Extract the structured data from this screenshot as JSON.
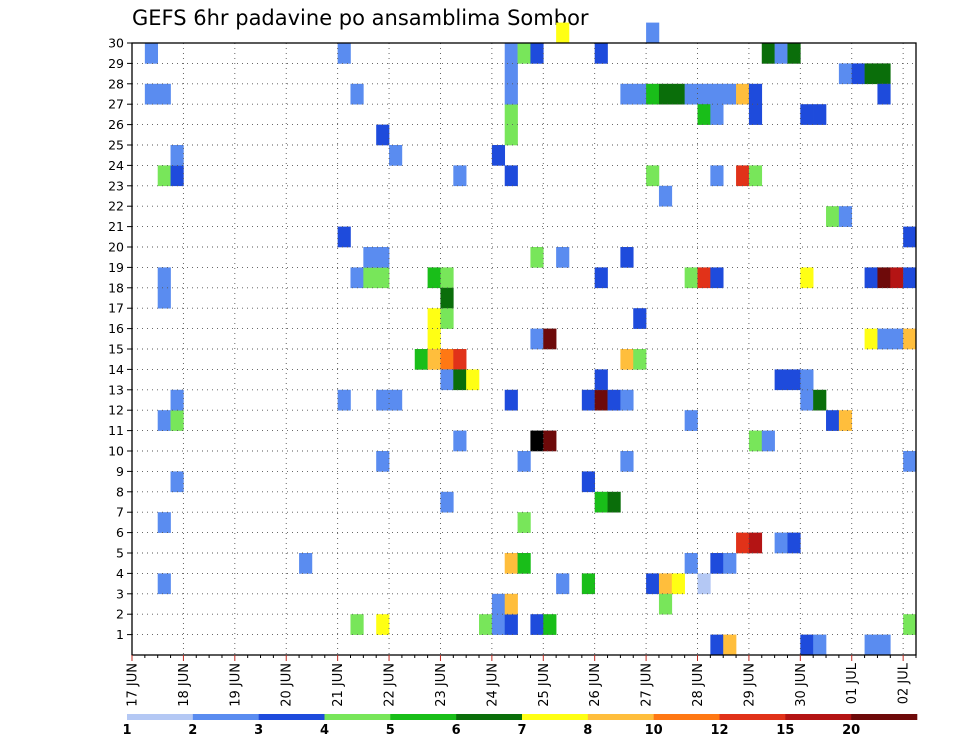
{
  "chart_data": {
    "type": "heatmap",
    "title": "GEFS 6hr padavine po ansamblima Sombor",
    "xlabel": "",
    "ylabel": "",
    "x_tick_labels": [
      "17 JUN",
      "18 JUN",
      "19 JUN",
      "20 JUN",
      "21 JUN",
      "22 JUN",
      "23 JUN",
      "24 JUN",
      "25 JUN",
      "26 JUN",
      "27 JUN",
      "28 JUN",
      "29 JUN",
      "30 JUN",
      "01 JUL",
      "02 JUL"
    ],
    "y_tick_labels": [
      "1",
      "2",
      "3",
      "4",
      "5",
      "6",
      "7",
      "8",
      "9",
      "10",
      "11",
      "12",
      "13",
      "14",
      "15",
      "16",
      "17",
      "18",
      "19",
      "20",
      "21",
      "22",
      "23",
      "24",
      "25",
      "26",
      "27",
      "28",
      "29",
      "30"
    ],
    "x_range": [
      0,
      61
    ],
    "y_range": [
      0,
      30
    ],
    "x_unit": "6-hour step from 17 JUN 00Z",
    "y_unit": "ensemble member",
    "grid": true,
    "legend_position": "bottom",
    "colorbar": {
      "labels": [
        "1",
        "2",
        "3",
        "4",
        "5",
        "6",
        "7",
        "8",
        "10",
        "12",
        "15",
        "20"
      ],
      "colors": [
        "#b4c8f4",
        "#5a8cf0",
        "#1e4bdc",
        "#78e65a",
        "#19be19",
        "#0a6e0a",
        "#ffff14",
        "#ffbe3c",
        "#ff7814",
        "#e13219",
        "#b41414",
        "#6e0a0a"
      ]
    },
    "cells": [
      [
        1,
        29,
        1
      ],
      [
        1,
        27,
        1
      ],
      [
        2,
        27,
        1
      ],
      [
        2,
        23,
        3
      ],
      [
        3,
        23,
        2
      ],
      [
        3,
        24,
        1
      ],
      [
        2,
        18,
        1
      ],
      [
        2,
        17,
        1
      ],
      [
        2,
        11,
        1
      ],
      [
        3,
        11,
        3
      ],
      [
        3,
        12,
        1
      ],
      [
        3,
        8,
        1
      ],
      [
        2,
        6,
        1
      ],
      [
        2,
        3,
        1
      ],
      [
        16,
        29,
        1
      ],
      [
        16,
        20,
        2
      ],
      [
        16,
        12,
        1
      ],
      [
        17,
        18,
        1
      ],
      [
        18,
        18,
        3
      ],
      [
        19,
        18,
        3
      ],
      [
        18,
        19,
        1
      ],
      [
        19,
        19,
        1
      ],
      [
        17,
        27,
        1
      ],
      [
        19,
        25,
        2
      ],
      [
        20,
        24,
        1
      ],
      [
        19,
        12,
        1
      ],
      [
        20,
        12,
        1
      ],
      [
        19,
        9,
        1
      ],
      [
        13,
        4,
        1
      ],
      [
        17,
        1,
        3
      ],
      [
        19,
        1,
        6
      ],
      [
        23,
        18,
        4
      ],
      [
        24,
        18,
        3
      ],
      [
        24,
        17,
        5
      ],
      [
        23,
        16,
        6
      ],
      [
        24,
        16,
        3
      ],
      [
        23,
        15,
        6
      ],
      [
        22,
        14,
        4
      ],
      [
        23,
        14,
        7
      ],
      [
        24,
        14,
        8
      ],
      [
        25,
        14,
        9
      ],
      [
        24,
        13,
        1
      ],
      [
        25,
        13,
        5
      ],
      [
        26,
        13,
        6
      ],
      [
        24,
        7,
        1
      ],
      [
        25,
        10,
        1
      ],
      [
        27,
        1,
        3
      ],
      [
        28,
        1,
        1
      ],
      [
        29,
        1,
        2
      ],
      [
        28,
        2,
        1
      ],
      [
        29,
        2,
        7
      ],
      [
        28,
        24,
        2
      ],
      [
        29,
        25,
        3
      ],
      [
        29,
        26,
        3
      ],
      [
        29,
        27,
        1
      ],
      [
        29,
        28,
        1
      ],
      [
        29,
        29,
        1
      ],
      [
        30,
        29,
        3
      ],
      [
        31,
        29,
        2
      ],
      [
        29,
        23,
        2
      ],
      [
        25,
        23,
        1
      ],
      [
        29,
        12,
        2
      ],
      [
        30,
        9,
        1
      ],
      [
        29,
        4,
        7
      ],
      [
        30,
        4,
        4
      ],
      [
        30,
        6,
        3
      ],
      [
        31,
        1,
        2
      ],
      [
        32,
        1,
        4
      ],
      [
        31,
        19,
        3
      ],
      [
        31,
        15,
        1
      ],
      [
        32,
        15,
        11
      ],
      [
        31,
        10,
        12
      ],
      [
        32,
        10,
        11
      ],
      [
        33,
        19,
        1
      ],
      [
        33,
        3,
        1
      ],
      [
        35,
        12,
        2
      ],
      [
        36,
        12,
        11
      ],
      [
        37,
        12,
        2
      ],
      [
        38,
        12,
        1
      ],
      [
        36,
        13,
        2
      ],
      [
        35,
        8,
        2
      ],
      [
        36,
        7,
        4
      ],
      [
        37,
        7,
        5
      ],
      [
        36,
        18,
        2
      ],
      [
        38,
        19,
        2
      ],
      [
        38,
        14,
        7
      ],
      [
        39,
        14,
        3
      ],
      [
        39,
        16,
        2
      ],
      [
        38,
        9,
        1
      ],
      [
        36,
        29,
        2
      ],
      [
        35,
        3,
        4
      ],
      [
        38,
        27,
        1
      ],
      [
        39,
        27,
        1
      ],
      [
        40,
        27,
        4
      ],
      [
        41,
        27,
        5
      ],
      [
        42,
        27,
        5
      ],
      [
        40,
        23,
        3
      ],
      [
        41,
        22,
        1
      ],
      [
        40,
        30,
        1
      ],
      [
        33,
        30,
        6
      ],
      [
        40,
        3,
        2
      ],
      [
        41,
        3,
        7
      ],
      [
        42,
        3,
        6
      ],
      [
        41,
        2,
        3
      ],
      [
        43,
        27,
        1
      ],
      [
        44,
        27,
        1
      ],
      [
        45,
        27,
        1
      ],
      [
        46,
        27,
        1
      ],
      [
        47,
        27,
        7
      ],
      [
        48,
        27,
        2
      ],
      [
        44,
        26,
        4
      ],
      [
        45,
        26,
        1
      ],
      [
        48,
        26,
        2
      ],
      [
        45,
        23,
        1
      ],
      [
        47,
        23,
        9
      ],
      [
        48,
        23,
        3
      ],
      [
        43,
        18,
        3
      ],
      [
        44,
        18,
        9
      ],
      [
        45,
        18,
        2
      ],
      [
        43,
        11,
        1
      ],
      [
        48,
        10,
        3
      ],
      [
        49,
        10,
        1
      ],
      [
        43,
        4,
        1
      ],
      [
        45,
        4,
        2
      ],
      [
        46,
        4,
        1
      ],
      [
        44,
        3,
        0
      ],
      [
        47,
        5,
        9
      ],
      [
        48,
        5,
        10
      ],
      [
        50,
        5,
        1
      ],
      [
        51,
        5,
        2
      ],
      [
        45,
        0,
        2
      ],
      [
        46,
        0,
        7
      ],
      [
        49,
        29,
        5
      ],
      [
        50,
        29,
        1
      ],
      [
        51,
        29,
        5
      ],
      [
        52,
        26,
        2
      ],
      [
        53,
        26,
        2
      ],
      [
        50,
        13,
        2
      ],
      [
        51,
        13,
        2
      ],
      [
        52,
        13,
        1
      ],
      [
        52,
        12,
        1
      ],
      [
        53,
        12,
        5
      ],
      [
        52,
        18,
        6
      ],
      [
        52,
        0,
        2
      ],
      [
        53,
        0,
        1
      ],
      [
        55,
        28,
        1
      ],
      [
        56,
        28,
        2
      ],
      [
        57,
        28,
        5
      ],
      [
        58,
        28,
        5
      ],
      [
        58,
        27,
        2
      ],
      [
        54,
        21,
        3
      ],
      [
        55,
        21,
        1
      ],
      [
        60,
        20,
        2
      ],
      [
        57,
        18,
        2
      ],
      [
        58,
        18,
        11
      ],
      [
        59,
        18,
        10
      ],
      [
        60,
        18,
        2
      ],
      [
        57,
        15,
        6
      ],
      [
        58,
        15,
        1
      ],
      [
        59,
        15,
        1
      ],
      [
        60,
        15,
        7
      ],
      [
        54,
        11,
        2
      ],
      [
        55,
        11,
        7
      ],
      [
        60,
        9,
        1
      ],
      [
        57,
        0,
        1
      ],
      [
        58,
        0,
        1
      ],
      [
        60,
        1,
        3
      ]
    ]
  }
}
